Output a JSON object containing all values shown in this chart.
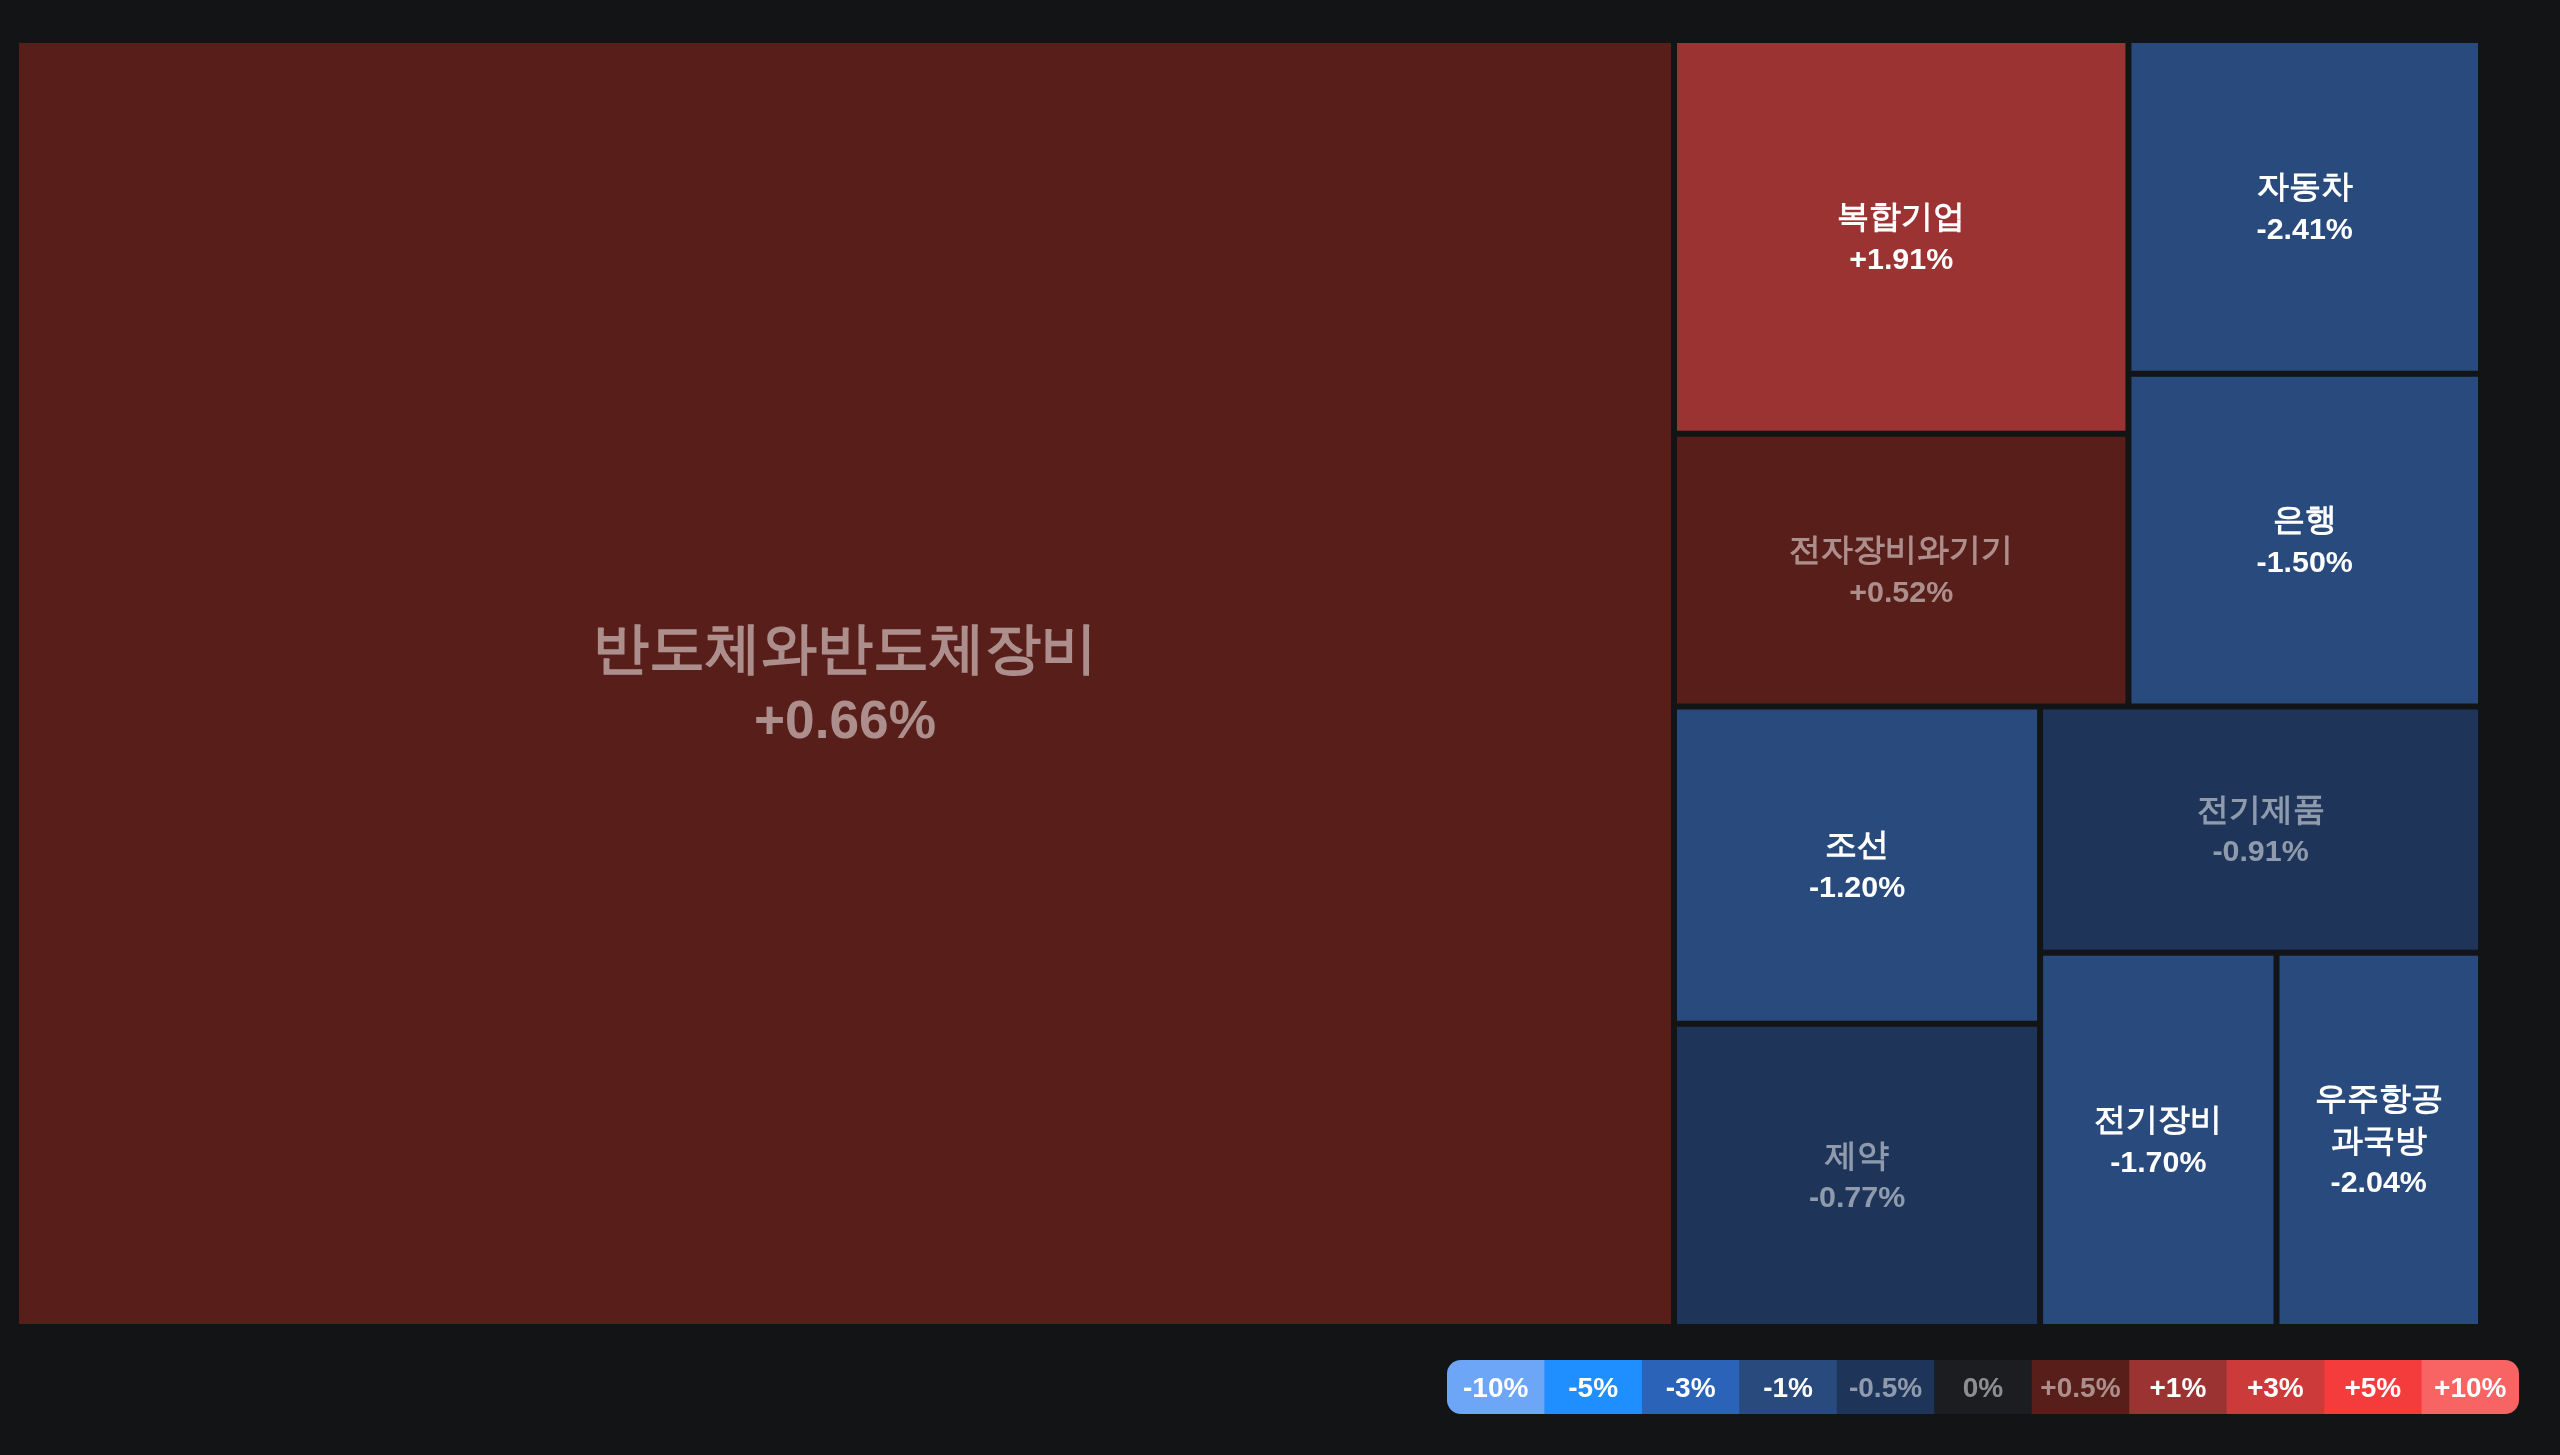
{
  "chart_data": [
    {
      "type": "other",
      "categories": [
        "반도체와반도체장비",
        "복합기업",
        "전자장비와기기",
        "자동차",
        "은행",
        "조선",
        "제약",
        "전기제품",
        "전기장비",
        "우주항공과국방"
      ],
      "values": [
        0.66,
        1.91,
        0.52,
        -2.41,
        -1.5,
        -1.2,
        -0.77,
        -0.91,
        -1.7,
        -2.04
      ],
      "value_labels": [
        "+0.66%",
        "+1.91%",
        "+0.52%",
        "-2.41%",
        "-1.50%",
        "-1.20%",
        "-0.77%",
        "-0.91%",
        "-1.70%",
        "-2.04%"
      ]
    },
    {
      "type": "other",
      "values": [
        -10,
        -5,
        -3,
        -1,
        -0.5,
        0,
        0.5,
        1,
        3,
        5,
        10
      ],
      "value_labels": [
        "-10%",
        "-5%",
        "-3%",
        "-1%",
        "-0.5%",
        "0%",
        "+0.5%",
        "+1%",
        "+3%",
        "+5%",
        "+10%"
      ],
      "colors": [
        "#6ea6f7",
        "#1f8eff",
        "#2b63b8",
        "#294a7c",
        "#1e3459",
        "#1c1d20",
        "#581e19",
        "#9c3333",
        "#cc3a3a",
        "#f43c3c",
        "#f86464"
      ]
    }
  ]
}
